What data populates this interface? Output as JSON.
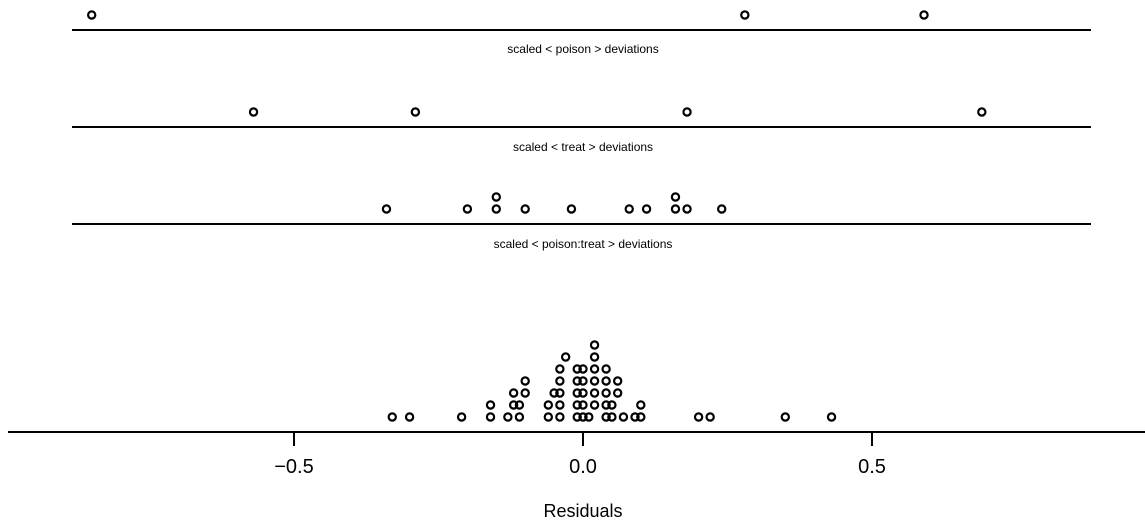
{
  "chart_data": {
    "type": "scatter",
    "subtype": "dot-strip",
    "xlabel": "Residuals",
    "xlim": [
      -0.99,
      0.95
    ],
    "xticks": [
      -0.5,
      0.0,
      0.5
    ],
    "xtick_labels": [
      "−0.5",
      "0.0",
      "0.5"
    ],
    "panels": [
      {
        "label": "scaled < poison > deviations",
        "values": [
          -0.85,
          0.28,
          0.59
        ]
      },
      {
        "label": "scaled < treat > deviations",
        "values": [
          -0.57,
          -0.29,
          0.18,
          0.69
        ]
      },
      {
        "label": "scaled < poison:treat > deviations",
        "values": [
          -0.34,
          -0.2,
          -0.15,
          -0.15,
          -0.1,
          -0.02,
          0.08,
          0.11,
          0.16,
          0.16,
          0.18,
          0.24
        ]
      },
      {
        "label": "",
        "values": [
          -0.33,
          -0.3,
          -0.21,
          -0.16,
          -0.16,
          -0.13,
          -0.12,
          -0.12,
          -0.11,
          -0.11,
          -0.1,
          -0.1,
          -0.06,
          -0.06,
          -0.05,
          -0.04,
          -0.04,
          -0.04,
          -0.04,
          -0.04,
          -0.03,
          -0.01,
          -0.01,
          -0.01,
          -0.01,
          -0.01,
          0.0,
          0.0,
          0.0,
          0.0,
          0.0,
          0.01,
          0.02,
          0.02,
          0.02,
          0.02,
          0.02,
          0.02,
          0.04,
          0.04,
          0.04,
          0.04,
          0.04,
          0.05,
          0.05,
          0.06,
          0.06,
          0.07,
          0.09,
          0.1,
          0.1,
          0.2,
          0.22,
          0.35,
          0.43
        ]
      }
    ]
  }
}
